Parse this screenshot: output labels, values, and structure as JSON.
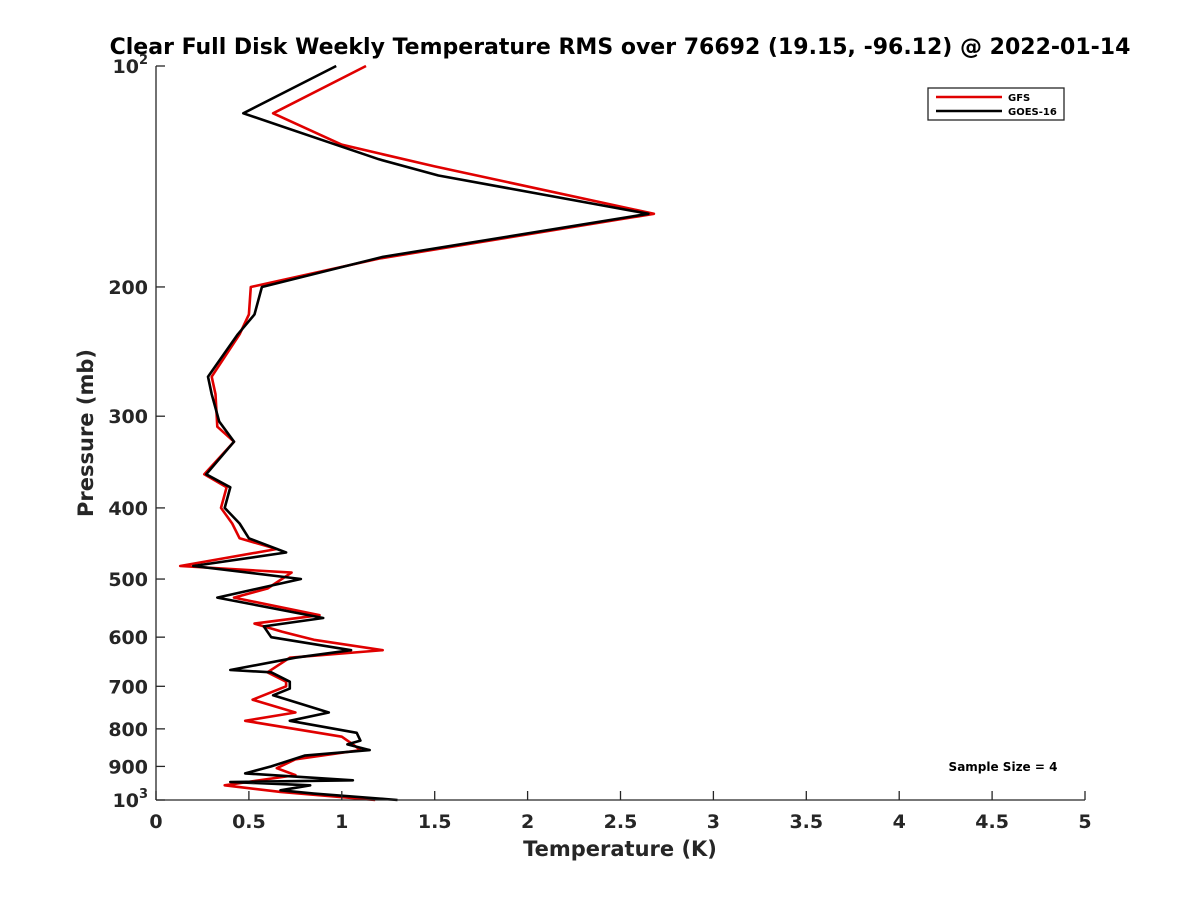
{
  "chart_data": {
    "type": "line",
    "title": "Clear Full Disk Weekly Temperature RMS over 76692 (19.15, -96.12) @ 2022-01-14",
    "xlabel": "Temperature (K)",
    "ylabel": "Pressure (mb)",
    "xlim": [
      0,
      5
    ],
    "ylim": [
      100,
      1000
    ],
    "y_scale": "log",
    "y_reversed": true,
    "x_ticks": [
      {
        "value": 0,
        "label": "0"
      },
      {
        "value": 0.5,
        "label": "0.5"
      },
      {
        "value": 1,
        "label": "1"
      },
      {
        "value": 1.5,
        "label": "1.5"
      },
      {
        "value": 2,
        "label": "2"
      },
      {
        "value": 2.5,
        "label": "2.5"
      },
      {
        "value": 3,
        "label": "3"
      },
      {
        "value": 3.5,
        "label": "3.5"
      },
      {
        "value": 4,
        "label": "4"
      },
      {
        "value": 4.5,
        "label": "4.5"
      },
      {
        "value": 5,
        "label": "5"
      }
    ],
    "y_ticks": [
      {
        "value": 100,
        "base": "10",
        "exp": "2"
      },
      {
        "value": 200,
        "base": "200",
        "exp": ""
      },
      {
        "value": 300,
        "base": "300",
        "exp": ""
      },
      {
        "value": 400,
        "base": "400",
        "exp": ""
      },
      {
        "value": 500,
        "base": "500",
        "exp": ""
      },
      {
        "value": 600,
        "base": "600",
        "exp": ""
      },
      {
        "value": 700,
        "base": "700",
        "exp": ""
      },
      {
        "value": 800,
        "base": "800",
        "exp": ""
      },
      {
        "value": 900,
        "base": "900",
        "exp": ""
      },
      {
        "value": 1000,
        "base": "10",
        "exp": "3"
      }
    ],
    "grid": false,
    "legend_position": "top-right",
    "annotation": "Sample Size = 4",
    "series": [
      {
        "name": "GFS",
        "color": "#e00000",
        "points": [
          [
            1.13,
            100
          ],
          [
            0.63,
            116
          ],
          [
            1.0,
            128
          ],
          [
            1.5,
            137
          ],
          [
            2.68,
            159
          ],
          [
            1.2,
            183
          ],
          [
            0.51,
            200
          ],
          [
            0.5,
            218
          ],
          [
            0.45,
            232
          ],
          [
            0.3,
            265
          ],
          [
            0.32,
            280
          ],
          [
            0.33,
            310
          ],
          [
            0.42,
            325
          ],
          [
            0.26,
            360
          ],
          [
            0.38,
            375
          ],
          [
            0.35,
            400
          ],
          [
            0.41,
            420
          ],
          [
            0.45,
            440
          ],
          [
            0.65,
            455
          ],
          [
            0.13,
            480
          ],
          [
            0.73,
            490
          ],
          [
            0.6,
            515
          ],
          [
            0.42,
            530
          ],
          [
            0.88,
            560
          ],
          [
            0.53,
            575
          ],
          [
            0.68,
            590
          ],
          [
            0.85,
            605
          ],
          [
            1.22,
            625
          ],
          [
            0.72,
            640
          ],
          [
            0.6,
            670
          ],
          [
            0.7,
            690
          ],
          [
            0.7,
            700
          ],
          [
            0.52,
            730
          ],
          [
            0.75,
            760
          ],
          [
            0.48,
            780
          ],
          [
            1.0,
            820
          ],
          [
            1.06,
            840
          ],
          [
            1.1,
            855
          ],
          [
            0.75,
            880
          ],
          [
            0.65,
            905
          ],
          [
            0.75,
            925
          ],
          [
            0.37,
            955
          ],
          [
            0.67,
            975
          ],
          [
            1.18,
            1000
          ]
        ]
      },
      {
        "name": "GOES-16",
        "color": "#000000",
        "points": [
          [
            0.97,
            100
          ],
          [
            0.47,
            116
          ],
          [
            1.2,
            134
          ],
          [
            1.52,
            141
          ],
          [
            2.65,
            159
          ],
          [
            1.22,
            182
          ],
          [
            0.57,
            200
          ],
          [
            0.53,
            218
          ],
          [
            0.44,
            232
          ],
          [
            0.28,
            265
          ],
          [
            0.3,
            280
          ],
          [
            0.34,
            305
          ],
          [
            0.42,
            325
          ],
          [
            0.27,
            360
          ],
          [
            0.4,
            375
          ],
          [
            0.37,
            400
          ],
          [
            0.45,
            420
          ],
          [
            0.5,
            440
          ],
          [
            0.7,
            460
          ],
          [
            0.2,
            480
          ],
          [
            0.78,
            500
          ],
          [
            0.33,
            530
          ],
          [
            0.9,
            565
          ],
          [
            0.58,
            580
          ],
          [
            0.62,
            600
          ],
          [
            1.05,
            625
          ],
          [
            0.75,
            640
          ],
          [
            0.4,
            665
          ],
          [
            0.62,
            670
          ],
          [
            0.72,
            690
          ],
          [
            0.72,
            705
          ],
          [
            0.63,
            720
          ],
          [
            0.93,
            760
          ],
          [
            0.72,
            780
          ],
          [
            1.08,
            810
          ],
          [
            1.1,
            830
          ],
          [
            1.03,
            840
          ],
          [
            1.15,
            855
          ],
          [
            0.8,
            870
          ],
          [
            0.62,
            900
          ],
          [
            0.48,
            920
          ],
          [
            1.06,
            940
          ],
          [
            0.4,
            945
          ],
          [
            0.83,
            955
          ],
          [
            0.67,
            970
          ],
          [
            0.85,
            980
          ],
          [
            1.3,
            1000
          ]
        ]
      }
    ]
  }
}
